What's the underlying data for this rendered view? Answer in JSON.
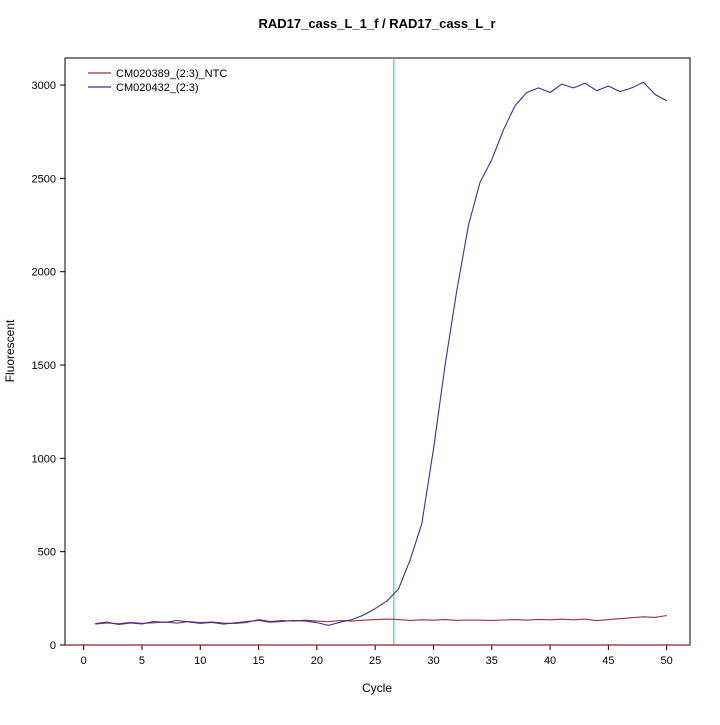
{
  "chart_data": {
    "type": "line",
    "title": "RAD17_cass_L_1_f / RAD17_cass_L_r",
    "xlabel": "Cycle",
    "ylabel": "Fluorescent",
    "xlim": [
      -1.6,
      52
    ],
    "ylim": [
      0,
      3145
    ],
    "xticks": [
      0,
      5,
      10,
      15,
      20,
      25,
      30,
      35,
      40,
      45,
      50
    ],
    "yticks": [
      0,
      500,
      1000,
      1500,
      2000,
      2500,
      3000
    ],
    "grid": false,
    "legend_position": "top-left",
    "x": [
      1,
      2,
      3,
      4,
      5,
      6,
      7,
      8,
      9,
      10,
      11,
      12,
      13,
      14,
      15,
      16,
      17,
      18,
      19,
      20,
      21,
      22,
      23,
      24,
      25,
      26,
      27,
      28,
      29,
      30,
      31,
      32,
      33,
      34,
      35,
      36,
      37,
      38,
      39,
      40,
      41,
      42,
      43,
      44,
      45,
      46,
      47,
      48,
      49,
      50
    ],
    "series": [
      {
        "name": "CM020389_(2:3)_NTC",
        "color": "#993333",
        "values": [
          112,
          118,
          114,
          121,
          116,
          119,
          123,
          117,
          126,
          120,
          123,
          118,
          115,
          121,
          136,
          126,
          131,
          128,
          133,
          128,
          125,
          131,
          128,
          133,
          136,
          139,
          136,
          132,
          135,
          133,
          136,
          132,
          134,
          133,
          132,
          134,
          136,
          133,
          137,
          135,
          138,
          135,
          139,
          130,
          136,
          141,
          146,
          151,
          148,
          158
        ]
      },
      {
        "name": "CM020432_(2:3)",
        "color": "#333399",
        "values": [
          115,
          122,
          110,
          118,
          113,
          126,
          121,
          131,
          124,
          116,
          121,
          112,
          119,
          126,
          131,
          122,
          126,
          131,
          128,
          120,
          105,
          122,
          136,
          160,
          195,
          235,
          300,
          455,
          650,
          1050,
          1500,
          1900,
          2250,
          2480,
          2600,
          2760,
          2890,
          2960,
          2985,
          2960,
          3005,
          2985,
          3010,
          2970,
          2995,
          2965,
          2985,
          3015,
          2950,
          2915
        ]
      }
    ],
    "vlines": [
      {
        "x": 26.6,
        "color": "#00cdcd",
        "label": "threshold-cycle-marker"
      }
    ],
    "hlines": [
      {
        "y": 0,
        "color": "#8b2323",
        "label": "baseline"
      }
    ]
  }
}
